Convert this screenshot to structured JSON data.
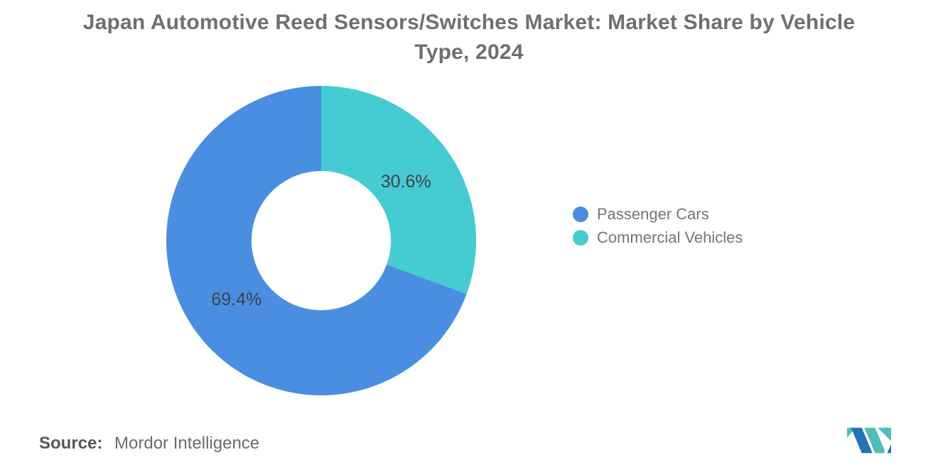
{
  "title": {
    "line1": "Japan Automotive Reed Sensors/Switches Market: Market Share by Vehicle",
    "line2": "Type, 2024"
  },
  "chart_data": {
    "type": "pie",
    "subtype": "donut",
    "title": "Japan Automotive Reed Sensors/Switches Market: Market Share by Vehicle Type, 2024",
    "unit": "%",
    "slices": [
      {
        "name": "Passenger Cars",
        "value": 69.4,
        "label": "69.4%",
        "color": "#4A8EE2"
      },
      {
        "name": "Commercial Vehicles",
        "value": 30.6,
        "label": "30.6%",
        "color": "#45CBD2"
      }
    ],
    "start_angle_deg": 0,
    "direction": "counterclockwise",
    "inner_radius_ratio": 0.45,
    "labels_inside": true,
    "legend_position": "right"
  },
  "legend": {
    "items": [
      {
        "label": "Passenger Cars",
        "color": "#4A8EE2"
      },
      {
        "label": "Commercial Vehicles",
        "color": "#45CBD2"
      }
    ]
  },
  "source": {
    "label": "Source:",
    "value": "Mordor Intelligence"
  },
  "logo": {
    "name": "mordor-intelligence-logo",
    "colors": {
      "blue": "#2272B8",
      "teal": "#4CBFB6"
    }
  },
  "colors": {
    "background": "#FFFFFF",
    "title_text": "#6E6F72",
    "slice_label_text": "#404347",
    "legend_text": "#737579",
    "source_label": "#55565A",
    "source_text": "#6A6B6E"
  }
}
